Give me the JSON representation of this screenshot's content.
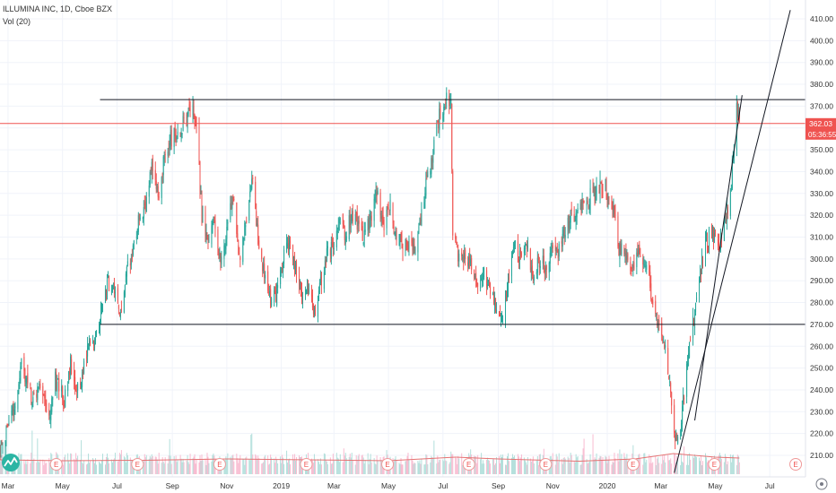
{
  "legend": {
    "symbol_line": "ILLUMINA INC, 1D, Cboe BZX",
    "volume_line": "Vol (20)"
  },
  "price_label": {
    "value": "362.03",
    "countdown": "05:36:55",
    "color": "#ef5350"
  },
  "colors": {
    "up": "#26a69a",
    "down": "#ef5350",
    "up_volume": "#b2dfdb",
    "down_volume": "#f8bbd0",
    "volume_ma": "#e57373",
    "grid": "#f0f3fa",
    "trendline": "#131722",
    "axis_text": "#333333"
  },
  "icons": [
    "tradingview-logo-icon",
    "earnings-event-icon",
    "chart-settings-icon"
  ],
  "earnings_marker_label": "E",
  "chart_data": {
    "type": "candlestick",
    "title": "ILLUMINA INC, 1D, Cboe BZX",
    "xlabel": "",
    "ylabel": "",
    "x_tick_labels": [
      "Mar",
      "May",
      "Jul",
      "Sep",
      "Nov",
      "2019",
      "Mar",
      "May",
      "Jul",
      "Sep",
      "Nov",
      "2020",
      "Mar",
      "May",
      "Jul"
    ],
    "y_tick_labels": [
      "210.00",
      "220.00",
      "230.00",
      "240.00",
      "250.00",
      "260.00",
      "270.00",
      "280.00",
      "290.00",
      "300.00",
      "310.00",
      "320.00",
      "330.00",
      "340.00",
      "350.00",
      "360.00",
      "370.00",
      "380.00",
      "390.00",
      "400.00",
      "410.00"
    ],
    "ylim": [
      200,
      414
    ],
    "x_range": [
      "2018-02-20",
      "2020-08-10"
    ],
    "last_price": 362.03,
    "close_path": [
      [
        "2018-02-20",
        211
      ],
      [
        "2018-03-08",
        232
      ],
      [
        "2018-03-15",
        252
      ],
      [
        "2018-03-29",
        235
      ],
      [
        "2018-04-05",
        242
      ],
      [
        "2018-04-16",
        228
      ],
      [
        "2018-04-23",
        245
      ],
      [
        "2018-05-03",
        235
      ],
      [
        "2018-05-10",
        253
      ],
      [
        "2018-05-17",
        240
      ],
      [
        "2018-05-31",
        259
      ],
      [
        "2018-06-07",
        265
      ],
      [
        "2018-06-14",
        275
      ],
      [
        "2018-06-21",
        290
      ],
      [
        "2018-06-28",
        285
      ],
      [
        "2018-07-05",
        272
      ],
      [
        "2018-07-12",
        295
      ],
      [
        "2018-07-19",
        305
      ],
      [
        "2018-07-26",
        318
      ],
      [
        "2018-08-02",
        322
      ],
      [
        "2018-08-09",
        342
      ],
      [
        "2018-08-16",
        330
      ],
      [
        "2018-08-23",
        345
      ],
      [
        "2018-08-30",
        355
      ],
      [
        "2018-09-10",
        360
      ],
      [
        "2018-09-20",
        366
      ],
      [
        "2018-09-24",
        370
      ],
      [
        "2018-09-28",
        360
      ],
      [
        "2018-10-04",
        322
      ],
      [
        "2018-10-11",
        305
      ],
      [
        "2018-10-18",
        320
      ],
      [
        "2018-10-25",
        295
      ],
      [
        "2018-11-01",
        315
      ],
      [
        "2018-11-08",
        330
      ],
      [
        "2018-11-15",
        300
      ],
      [
        "2018-11-22",
        318
      ],
      [
        "2018-11-29",
        338
      ],
      [
        "2018-12-06",
        310
      ],
      [
        "2018-12-13",
        292
      ],
      [
        "2018-12-20",
        280
      ],
      [
        "2018-12-27",
        285
      ],
      [
        "2019-01-03",
        300
      ],
      [
        "2019-01-10",
        308
      ],
      [
        "2019-01-17",
        295
      ],
      [
        "2019-01-24",
        282
      ],
      [
        "2019-01-31",
        285
      ],
      [
        "2019-02-07",
        276
      ],
      [
        "2019-02-14",
        288
      ],
      [
        "2019-02-21",
        302
      ],
      [
        "2019-02-28",
        306
      ],
      [
        "2019-03-07",
        315
      ],
      [
        "2019-03-14",
        312
      ],
      [
        "2019-03-21",
        320
      ],
      [
        "2019-03-28",
        315
      ],
      [
        "2019-04-04",
        310
      ],
      [
        "2019-04-11",
        318
      ],
      [
        "2019-04-18",
        330
      ],
      [
        "2019-04-25",
        315
      ],
      [
        "2019-05-02",
        325
      ],
      [
        "2019-05-09",
        312
      ],
      [
        "2019-05-16",
        305
      ],
      [
        "2019-05-23",
        308
      ],
      [
        "2019-05-30",
        302
      ],
      [
        "2019-06-06",
        320
      ],
      [
        "2019-06-13",
        335
      ],
      [
        "2019-06-20",
        350
      ],
      [
        "2019-06-27",
        365
      ],
      [
        "2019-07-05",
        375
      ],
      [
        "2019-07-10",
        372
      ],
      [
        "2019-07-12",
        312
      ],
      [
        "2019-07-19",
        300
      ],
      [
        "2019-07-26",
        302
      ],
      [
        "2019-08-02",
        296
      ],
      [
        "2019-08-09",
        290
      ],
      [
        "2019-08-16",
        293
      ],
      [
        "2019-08-23",
        285
      ],
      [
        "2019-08-30",
        278
      ],
      [
        "2019-09-05",
        270
      ],
      [
        "2019-09-12",
        290
      ],
      [
        "2019-09-19",
        305
      ],
      [
        "2019-09-26",
        300
      ],
      [
        "2019-10-03",
        307
      ],
      [
        "2019-10-10",
        292
      ],
      [
        "2019-10-17",
        300
      ],
      [
        "2019-10-24",
        296
      ],
      [
        "2019-10-31",
        305
      ],
      [
        "2019-11-07",
        302
      ],
      [
        "2019-11-14",
        312
      ],
      [
        "2019-11-21",
        318
      ],
      [
        "2019-11-28",
        322
      ],
      [
        "2019-12-05",
        325
      ],
      [
        "2019-12-12",
        328
      ],
      [
        "2019-12-19",
        331
      ],
      [
        "2019-12-26",
        334
      ],
      [
        "2020-01-02",
        330
      ],
      [
        "2020-01-09",
        320
      ],
      [
        "2020-01-14",
        305
      ],
      [
        "2020-01-23",
        300
      ],
      [
        "2020-01-30",
        297
      ],
      [
        "2020-02-06",
        305
      ],
      [
        "2020-02-13",
        298
      ],
      [
        "2020-02-20",
        282
      ],
      [
        "2020-02-27",
        268
      ],
      [
        "2020-03-05",
        260
      ],
      [
        "2020-03-12",
        242
      ],
      [
        "2020-03-16",
        218
      ],
      [
        "2020-03-23",
        222
      ],
      [
        "2020-03-30",
        250
      ],
      [
        "2020-04-06",
        270
      ],
      [
        "2020-04-13",
        290
      ],
      [
        "2020-04-20",
        308
      ],
      [
        "2020-04-27",
        312
      ],
      [
        "2020-05-04",
        305
      ],
      [
        "2020-05-11",
        315
      ],
      [
        "2020-05-18",
        330
      ],
      [
        "2020-05-21",
        348
      ],
      [
        "2020-05-25",
        370
      ],
      [
        "2020-05-28",
        362
      ]
    ],
    "volume_average_path": [
      [
        "2018-02-20",
        1.6
      ],
      [
        "2018-05-01",
        1.5
      ],
      [
        "2018-08-01",
        1.55
      ],
      [
        "2018-11-01",
        1.7
      ],
      [
        "2019-02-01",
        1.6
      ],
      [
        "2019-05-01",
        1.5
      ],
      [
        "2019-07-15",
        1.9
      ],
      [
        "2019-09-01",
        1.7
      ],
      [
        "2019-12-01",
        1.45
      ],
      [
        "2020-02-01",
        1.7
      ],
      [
        "2020-03-15",
        2.3
      ],
      [
        "2020-05-01",
        1.9
      ],
      [
        "2020-05-28",
        1.8
      ]
    ],
    "earnings_dates": [
      "2018-04-24",
      "2018-07-24",
      "2018-10-24",
      "2019-01-29",
      "2019-04-30",
      "2019-07-30",
      "2019-10-24",
      "2020-01-30",
      "2020-04-30",
      "2020-07-30"
    ],
    "annotations": [
      {
        "type": "horizontal_line",
        "y": 373,
        "x_from": "2018-06-12",
        "x_to": "2020-08-10",
        "color": "#131722"
      },
      {
        "type": "horizontal_line",
        "y": 270,
        "x_from": "2018-06-12",
        "x_to": "2020-08-10",
        "color": "#131722"
      },
      {
        "type": "horizontal_line",
        "y": 362.03,
        "x_from": "2018-02-20",
        "x_to": "2020-08-10",
        "color": "#ef5350"
      },
      {
        "type": "trend_line",
        "from": [
          "2020-03-16",
          202
        ],
        "to": [
          "2020-07-24",
          414
        ],
        "color": "#131722"
      },
      {
        "type": "trend_line",
        "from": [
          "2020-04-08",
          226
        ],
        "to": [
          "2020-05-31",
          375
        ],
        "color": "#131722"
      }
    ]
  }
}
